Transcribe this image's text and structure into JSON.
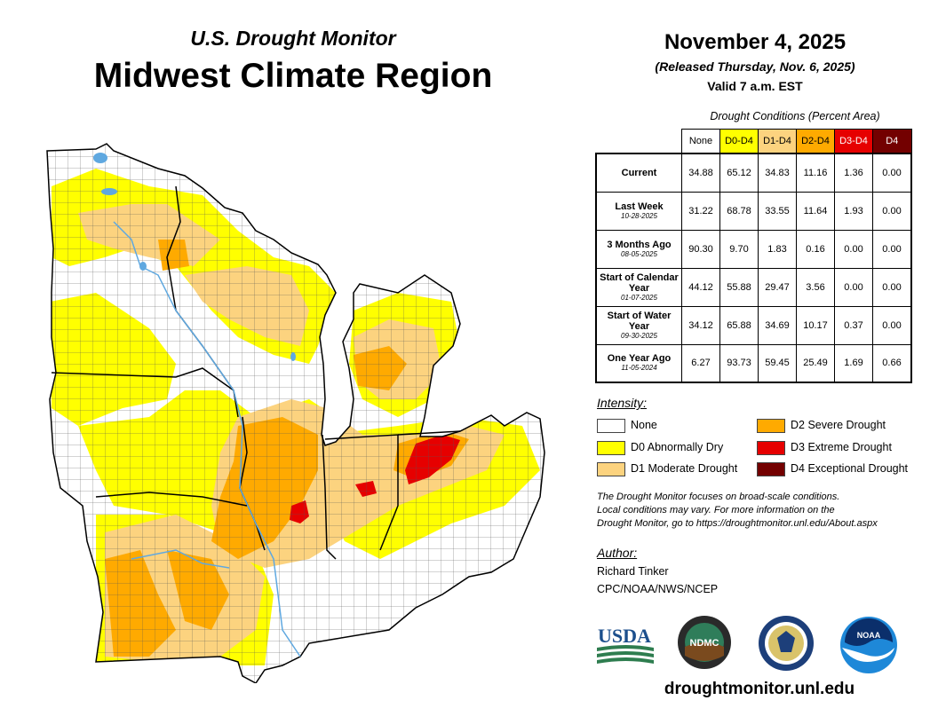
{
  "header": {
    "subtitle": "U.S. Drought Monitor",
    "title": "Midwest Climate Region"
  },
  "date_block": {
    "date": "November 4, 2025",
    "released": "(Released Thursday, Nov. 6, 2025)",
    "valid": "Valid 7 a.m. EST"
  },
  "table": {
    "caption": "Drought Conditions (Percent Area)",
    "columns": [
      "None",
      "D0-D4",
      "D1-D4",
      "D2-D4",
      "D3-D4",
      "D4"
    ],
    "column_colors": [
      "#ffffff",
      "#ffff00",
      "#fcd37f",
      "#ffaa00",
      "#e60000",
      "#730000"
    ],
    "rows": [
      {
        "label": "Current",
        "sub": "",
        "values": [
          "34.88",
          "65.12",
          "34.83",
          "11.16",
          "1.36",
          "0.00"
        ]
      },
      {
        "label": "Last Week",
        "sub": "10-28-2025",
        "values": [
          "31.22",
          "68.78",
          "33.55",
          "11.64",
          "1.93",
          "0.00"
        ]
      },
      {
        "label": "3 Months Ago",
        "sub": "08-05-2025",
        "values": [
          "90.30",
          "9.70",
          "1.83",
          "0.16",
          "0.00",
          "0.00"
        ]
      },
      {
        "label": "Start of Calendar Year",
        "sub": "01-07-2025",
        "values": [
          "44.12",
          "55.88",
          "29.47",
          "3.56",
          "0.00",
          "0.00"
        ]
      },
      {
        "label": "Start of Water Year",
        "sub": "09-30-2025",
        "values": [
          "34.12",
          "65.88",
          "34.69",
          "10.17",
          "0.37",
          "0.00"
        ]
      },
      {
        "label": "One Year Ago",
        "sub": "11-05-2024",
        "values": [
          "6.27",
          "93.73",
          "59.45",
          "25.49",
          "1.69",
          "0.66"
        ]
      }
    ]
  },
  "intensity": {
    "title": "Intensity:",
    "items": [
      {
        "label": "None",
        "color": "#ffffff"
      },
      {
        "label": "D0 Abnormally Dry",
        "color": "#ffff00"
      },
      {
        "label": "D1 Moderate Drought",
        "color": "#fcd37f"
      },
      {
        "label": "D2 Severe Drought",
        "color": "#ffaa00"
      },
      {
        "label": "D3 Extreme Drought",
        "color": "#e60000"
      },
      {
        "label": "D4 Exceptional Drought",
        "color": "#730000"
      }
    ]
  },
  "note": {
    "line1": "The Drought Monitor focuses on broad-scale conditions.",
    "line2": "Local conditions may vary. For more information on the",
    "line3": "Drought Monitor, go to https://droughtmonitor.unl.edu/About.aspx"
  },
  "author": {
    "title": "Author:",
    "name": "Richard Tinker",
    "org": "CPC/NOAA/NWS/NCEP"
  },
  "logos": {
    "usda": "USDA",
    "ndmc": "NDMC",
    "noaa": "NOAA"
  },
  "map": {
    "region": "Midwest",
    "colors": {
      "none": "#ffffff",
      "d0": "#ffff00",
      "d1": "#fcd37f",
      "d2": "#ffaa00",
      "d3": "#e60000",
      "water": "#5fa8e0",
      "border": "#000000"
    }
  },
  "url": "droughtmonitor.unl.edu"
}
